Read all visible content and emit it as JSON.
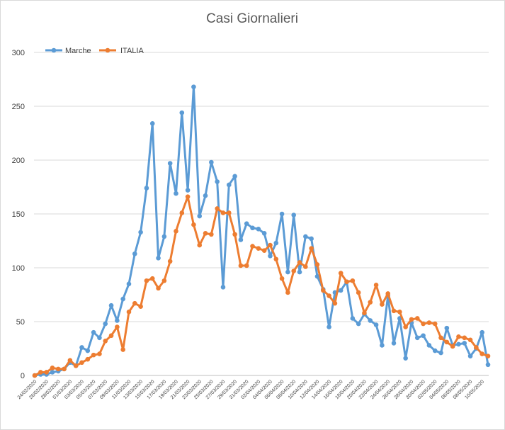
{
  "chart_data": {
    "type": "line",
    "title": "Casi Giornalieri",
    "xlabel": "",
    "ylabel": "",
    "ylim": [
      0,
      300
    ],
    "yticks": [
      0,
      50,
      100,
      150,
      200,
      250,
      300
    ],
    "grid": "horizontal",
    "legend_position": "top-left",
    "x": [
      "24/02/2020",
      "25/02/2020",
      "26/02/2020",
      "27/02/2020",
      "28/02/2020",
      "29/02/2020",
      "01/03/2020",
      "02/03/2020",
      "03/03/2020",
      "04/03/2020",
      "05/03/2020",
      "06/03/2020",
      "07/03/2020",
      "08/03/2020",
      "09/03/2020",
      "10/03/2020",
      "11/03/2020",
      "12/03/2020",
      "13/03/2020",
      "14/03/2020",
      "15/03/2020",
      "16/03/2020",
      "17/03/2020",
      "18/03/2020",
      "19/03/2020",
      "20/03/2020",
      "21/03/2020",
      "22/03/2020",
      "23/03/2020",
      "24/03/2020",
      "25/03/2020",
      "26/03/2020",
      "27/03/2020",
      "28/03/2020",
      "29/03/2020",
      "30/03/2020",
      "31/03/2020",
      "01/04/2020",
      "02/04/2020",
      "03/04/2020",
      "04/04/2020",
      "05/04/2020",
      "06/04/2020",
      "07/04/2020",
      "08/04/2020",
      "09/04/2020",
      "10/04/2020",
      "11/04/2020",
      "12/04/2020",
      "13/04/2020",
      "14/04/2020",
      "15/04/2020",
      "16/04/2020",
      "17/04/2020",
      "18/04/2020",
      "19/04/2020",
      "20/04/2020",
      "21/04/2020",
      "22/04/2020",
      "23/04/2020",
      "24/04/2020",
      "25/04/2020",
      "26/04/2020",
      "27/04/2020",
      "28/04/2020",
      "29/04/2020",
      "30/04/2020",
      "01/05/2020",
      "02/05/2020",
      "03/05/2020",
      "04/05/2020",
      "05/05/2020",
      "06/05/2020",
      "07/05/2020",
      "08/05/2020",
      "09/05/2020",
      "10/05/2020",
      "11/05/2020"
    ],
    "x_tick_labels": [
      "24/02/2020",
      "26/02/2020",
      "28/02/2020",
      "01/03/2020",
      "03/03/2020",
      "05/03/2020",
      "07/03/2020",
      "09/03/2020",
      "11/03/2020",
      "13/03/2020",
      "15/03/2020",
      "17/03/2020",
      "19/03/2020",
      "21/03/2020",
      "23/03/2020",
      "25/03/2020",
      "27/03/2020",
      "29/03/2020",
      "31/03/2020",
      "02/04/2020",
      "04/04/2020",
      "06/04/2020",
      "08/04/2020",
      "10/04/2020",
      "12/04/2020",
      "14/04/2020",
      "16/04/2020",
      "18/04/2020",
      "20/04/2020",
      "22/04/2020",
      "24/04/2020",
      "26/04/2020",
      "28/04/2020",
      "30/04/2020",
      "02/05/2020",
      "04/05/2020",
      "06/05/2020",
      "08/05/2020",
      "10/05/2020"
    ],
    "series": [
      {
        "name": "Marche",
        "color": "#5b9bd5",
        "values": [
          0,
          1,
          1,
          3,
          4,
          6,
          12,
          9,
          26,
          23,
          40,
          35,
          48,
          65,
          51,
          71,
          85,
          113,
          133,
          174,
          234,
          109,
          129,
          197,
          169,
          244,
          172,
          268,
          148,
          167,
          198,
          180,
          82,
          177,
          185,
          126,
          141,
          137,
          136,
          132,
          111,
          123,
          150,
          96,
          149,
          96,
          129,
          127,
          92,
          80,
          45,
          77,
          79,
          87,
          53,
          48,
          57,
          51,
          47,
          28,
          74,
          30,
          53,
          16,
          49,
          35,
          37,
          28,
          23,
          21,
          44,
          28,
          29,
          30,
          18,
          25,
          40,
          10
        ]
      },
      {
        "name": "ITALIA",
        "color": "#ed7d31",
        "values": [
          0,
          3,
          3,
          7,
          6,
          6,
          14,
          9,
          12,
          15,
          19,
          20,
          32,
          37,
          45,
          24,
          59,
          67,
          64,
          88,
          90,
          81,
          88,
          106,
          134,
          151,
          166,
          140,
          121,
          132,
          131,
          155,
          151,
          151,
          131,
          102,
          102,
          120,
          118,
          116,
          121,
          108,
          90,
          77,
          97,
          105,
          101,
          118,
          103,
          79,
          74,
          67,
          95,
          87,
          88,
          77,
          58,
          68,
          84,
          66,
          76,
          60,
          59,
          45,
          52,
          53,
          48,
          49,
          48,
          35,
          31,
          27,
          36,
          35,
          33,
          26,
          20,
          18
        ]
      }
    ]
  }
}
